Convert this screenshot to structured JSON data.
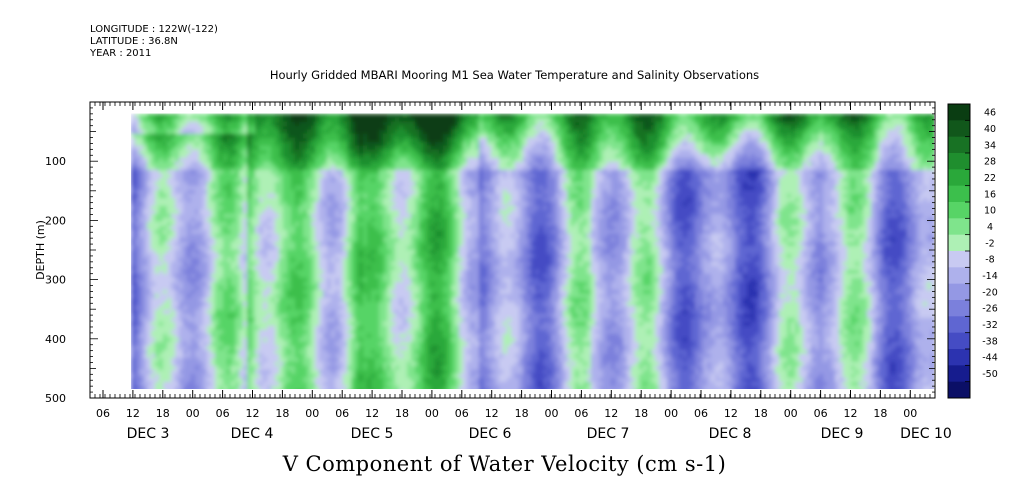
{
  "header": {
    "longitude": "LONGITUDE : 122W(-122)",
    "latitude": "LATITUDE : 36.8N",
    "year": "YEAR : 2011"
  },
  "subtitle": "Hourly Gridded MBARI Mooring M1 Sea Water Temperature and Salinity Observations",
  "title": "V Component of Water Velocity (cm s-1)",
  "chart_data": {
    "type": "heatmap",
    "title": "V Component of Water Velocity (cm s-1)",
    "ylabel": "DEPTH (m)",
    "y_reversed": true,
    "ylim": [
      500,
      0
    ],
    "yticks": [
      100,
      200,
      300,
      400,
      500
    ],
    "x_hour_ticks": [
      "06",
      "12",
      "18",
      "00",
      "06",
      "12",
      "18",
      "00",
      "06",
      "12",
      "18",
      "00",
      "06",
      "12",
      "18",
      "00",
      "06",
      "12",
      "18",
      "00",
      "06",
      "12",
      "18",
      "00",
      "06",
      "12",
      "18",
      "00",
      "06",
      "12",
      "18",
      "00"
    ],
    "x_date_labels": [
      "DEC 3",
      "DEC 4",
      "DEC 5",
      "DEC 6",
      "DEC 7",
      "DEC 8",
      "DEC 9",
      "DEC 10"
    ],
    "data_extent_depth": [
      20,
      488
    ],
    "colorbar": {
      "levels": [
        "46",
        "40",
        "34",
        "28",
        "22",
        "16",
        "10",
        "4",
        "-2",
        "-8",
        "-14",
        "-20",
        "-26",
        "-32",
        "-38",
        "-44",
        "-50"
      ],
      "colors": [
        "#0a3d12",
        "#11571b",
        "#187224",
        "#1f8e2e",
        "#2aa83a",
        "#3cbf4c",
        "#57d466",
        "#7fe48c",
        "#aef0b5",
        "#c8caf2",
        "#aeb1ec",
        "#9498e4",
        "#7b80dc",
        "#5f66d2",
        "#454cc4",
        "#2c33b0",
        "#161c8e",
        "#0b0f66"
      ]
    },
    "field_pattern": {
      "surface_layer_positive_depth": 110,
      "columns": [
        {
          "day": "DEC 3",
          "sign": "negative"
        },
        {
          "day": "DEC 4",
          "sign": "positive"
        },
        {
          "day": "DEC 5",
          "sign": "mixed"
        },
        {
          "day": "DEC 6",
          "sign": "negative"
        },
        {
          "day": "DEC 7",
          "sign": "negative"
        },
        {
          "day": "DEC 8",
          "sign": "negative"
        },
        {
          "day": "DEC 9",
          "sign": "negative"
        }
      ]
    }
  }
}
